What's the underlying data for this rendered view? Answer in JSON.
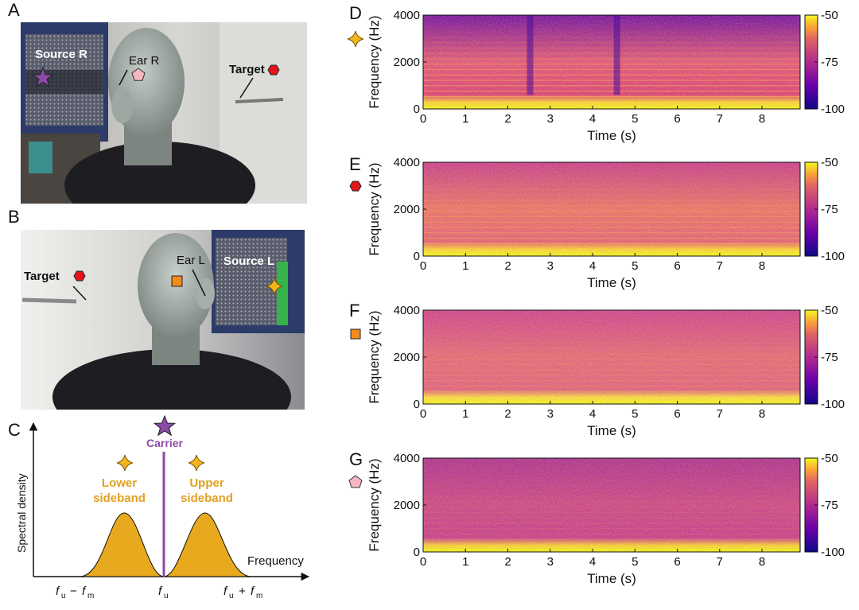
{
  "panels": {
    "A": {
      "letter": "A",
      "labels": {
        "source": "Source R",
        "ear": "Ear R",
        "target": "Target"
      }
    },
    "B": {
      "letter": "B",
      "labels": {
        "source": "Source L",
        "ear": "Ear L",
        "target": "Target"
      }
    },
    "C": {
      "letter": "C",
      "ylabel": "Spectral density",
      "xlabel": "Frequency",
      "carrier": "Carrier",
      "lower": [
        "Lower",
        "sideband"
      ],
      "upper": [
        "Upper",
        "sideband"
      ],
      "ticks": [
        "f_u − f_m",
        "f_u",
        "f_u + f_m"
      ]
    }
  },
  "colors": {
    "star_purple": "#8a4aa6",
    "pentagon_pink": "#f6b7c1",
    "hexagon_red": "#e3141b",
    "square_orange": "#f28c1b",
    "sideband_gold": "#e8a91e",
    "cmap_low": "#0d0887",
    "cmap_high": "#f0f921"
  },
  "chart_data": [
    {
      "panel": "D",
      "marker": "star4-gold-icon",
      "type": "heatmap",
      "xlabel": "Time (s)",
      "ylabel": "Frequency (Hz)",
      "xticks": [
        0,
        1,
        2,
        3,
        4,
        5,
        6,
        7,
        8
      ],
      "yticks": [
        0,
        2000,
        4000
      ],
      "xlim": [
        0,
        8.9
      ],
      "ylim": [
        0,
        4000
      ],
      "colorbar": {
        "ticks": [
          -50,
          -75,
          -100
        ],
        "range": [
          -100,
          -50
        ]
      },
      "silent_gaps_s": [
        [
          2.45,
          2.6
        ],
        [
          4.5,
          4.65
        ]
      ]
    },
    {
      "panel": "E",
      "marker": "hexagon-red-icon",
      "type": "heatmap",
      "xlabel": "Time (s)",
      "ylabel": "Frequency (Hz)",
      "xticks": [
        0,
        1,
        2,
        3,
        4,
        5,
        6,
        7,
        8
      ],
      "yticks": [
        0,
        2000,
        4000
      ],
      "xlim": [
        0,
        8.9
      ],
      "ylim": [
        0,
        4000
      ],
      "colorbar": {
        "ticks": [
          -50,
          -75,
          -100
        ],
        "range": [
          -100,
          -50
        ]
      }
    },
    {
      "panel": "F",
      "marker": "square-orange-icon",
      "type": "heatmap",
      "xlabel": "Time (s)",
      "ylabel": "Frequency (Hz)",
      "xticks": [
        0,
        1,
        2,
        3,
        4,
        5,
        6,
        7,
        8
      ],
      "yticks": [
        0,
        2000,
        4000
      ],
      "xlim": [
        0,
        8.9
      ],
      "ylim": [
        0,
        4000
      ],
      "colorbar": {
        "ticks": [
          -50,
          -75,
          -100
        ],
        "range": [
          -100,
          -50
        ]
      }
    },
    {
      "panel": "G",
      "marker": "pentagon-pink-icon",
      "type": "heatmap",
      "xlabel": "Time (s)",
      "ylabel": "Frequency (Hz)",
      "xticks": [
        0,
        1,
        2,
        3,
        4,
        5,
        6,
        7,
        8
      ],
      "yticks": [
        0,
        2000,
        4000
      ],
      "xlim": [
        0,
        8.9
      ],
      "ylim": [
        0,
        4000
      ],
      "colorbar": {
        "ticks": [
          -50,
          -75,
          -100
        ],
        "range": [
          -100,
          -50
        ]
      }
    }
  ]
}
